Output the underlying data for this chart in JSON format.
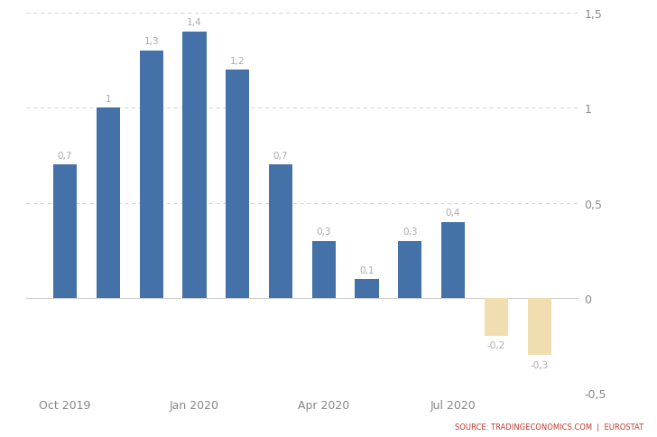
{
  "x_positions": [
    0,
    1,
    2,
    3,
    4,
    5,
    6,
    7,
    8,
    9,
    10,
    11
  ],
  "values": [
    0.7,
    1.0,
    1.3,
    1.4,
    1.2,
    0.7,
    0.3,
    0.1,
    0.3,
    0.4,
    -0.2,
    -0.3
  ],
  "value_labels": [
    "0,7",
    "1",
    "1,3",
    "1,4",
    "1,2",
    "0,7",
    "0,3",
    "0,1",
    "0,3",
    "0,4",
    "-0,2",
    "-0,3"
  ],
  "bar_color_positive": "#4472a8",
  "bar_color_negative": "#f0deb0",
  "ylim": [
    -0.5,
    1.5
  ],
  "yticks": [
    -0.5,
    0,
    0.5,
    1.0,
    1.5
  ],
  "ytick_labels": [
    "-0,5",
    "0",
    "0,5",
    "1",
    "1,5"
  ],
  "xtick_labels": [
    "Oct 2019",
    "Jan 2020",
    "Apr 2020",
    "Jul 2020"
  ],
  "xtick_positions": [
    0,
    3,
    6,
    9
  ],
  "background_color": "#ffffff",
  "grid_color": "#d0d0d0",
  "source_text": "SOURCE: TRADINGECONOMICS.COM  |  EUROSTAT",
  "bar_width": 0.55,
  "label_color": "#aaaaaa",
  "tick_color": "#888888"
}
